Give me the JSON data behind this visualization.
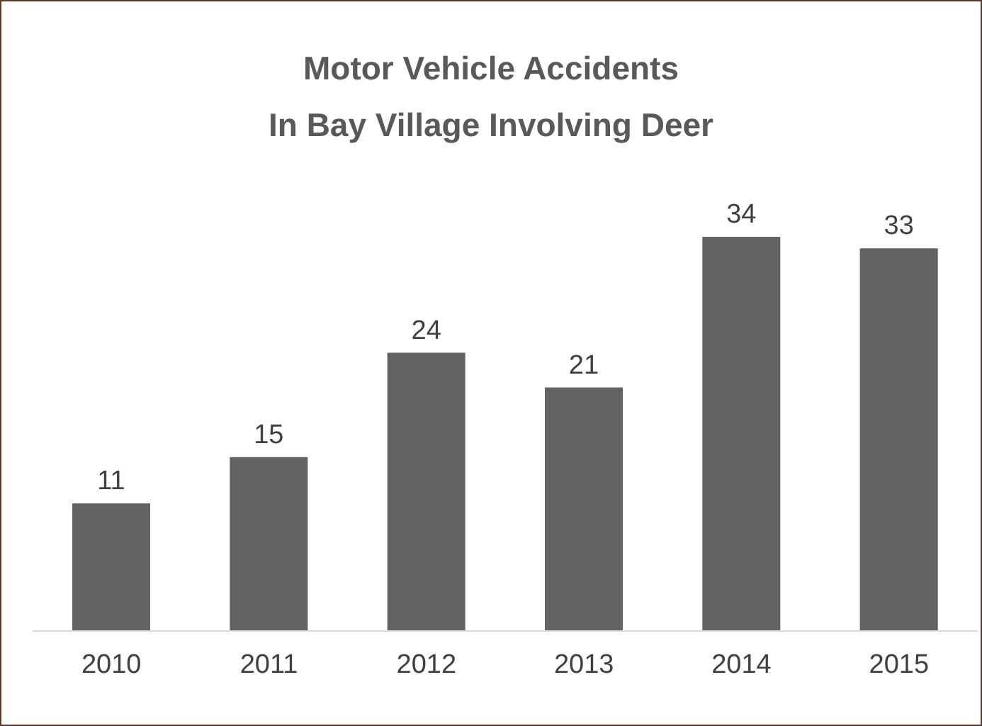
{
  "chart_data": {
    "type": "bar",
    "title": "Motor Vehicle Accidents\nIn Bay Village Involving Deer",
    "categories": [
      "2010",
      "2011",
      "2012",
      "2013",
      "2014",
      "2015"
    ],
    "values": [
      11,
      15,
      24,
      21,
      34,
      33
    ],
    "color": "#636363",
    "data_labels": true,
    "tick_labels": "x"
  }
}
